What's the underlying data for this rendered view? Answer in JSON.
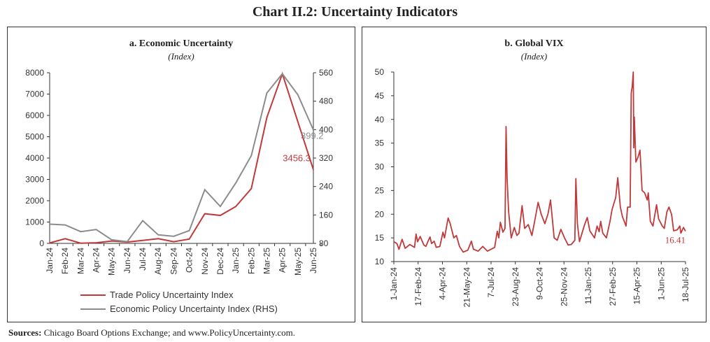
{
  "title": "Chart II.2: Uncertainty Indicators",
  "sources_label": "Sources:",
  "sources_text": "Chicago Board Options Exchange; and www.PolicyUncertainty.com.",
  "colors": {
    "red": "#c0393b",
    "grey": "#8c8c8c",
    "axis": "#333333"
  },
  "chart_data": [
    {
      "type": "line",
      "title": "a. Economic Uncertainty",
      "subtitle": "(Index)",
      "categories": [
        "Jan-24",
        "Feb-24",
        "Mar-24",
        "Apr-24",
        "May-24",
        "Jun-24",
        "Jul-24",
        "Aug-24",
        "Sep-24",
        "Oct-24",
        "Nov-24",
        "Dec-24",
        "Jan-25",
        "Feb-25",
        "Mar-25",
        "Apr-25",
        "May-25",
        "Jun-25"
      ],
      "ylim": [
        0,
        8000
      ],
      "yticks": [
        0,
        1000,
        2000,
        3000,
        4000,
        5000,
        6000,
        7000,
        8000
      ],
      "y2lim": [
        80,
        560
      ],
      "y2ticks": [
        80,
        160,
        240,
        320,
        400,
        480,
        560
      ],
      "legend_position": "bottom",
      "series": [
        {
          "name": "Trade Policy Uncertainty Index",
          "axis": "left",
          "color": "#c0393b",
          "values": [
            20,
            220,
            10,
            30,
            110,
            60,
            140,
            220,
            80,
            200,
            1390,
            1310,
            1730,
            2570,
            5900,
            7950,
            5700,
            3456.3
          ],
          "end_label": "3456.3"
        },
        {
          "name": "Economic Policy Uncertainty Index (RHS)",
          "axis": "right",
          "color": "#8c8c8c",
          "values": [
            134,
            132,
            113,
            119,
            90,
            85,
            144,
            104,
            100,
            116,
            231,
            184,
            250,
            327,
            503,
            557,
            498,
            399.2
          ],
          "end_label": "399.2"
        }
      ]
    },
    {
      "type": "line",
      "title": "b. Global VIX",
      "subtitle": "(Index)",
      "x_unit": "days since 1-Jan-24",
      "xlim": [
        0,
        564
      ],
      "xticks": [
        0,
        47,
        94,
        141,
        188,
        235,
        282,
        329,
        376,
        423,
        470,
        517,
        564
      ],
      "xtick_labels": [
        "1-Jan-24",
        "17-Feb-24",
        "4-Apr-24",
        "21-May-24",
        "7-Jul-24",
        "23-Aug-24",
        "9-Oct-24",
        "25-Nov-24",
        "11-Jan-25",
        "27-Feb-25",
        "15-Apr-25",
        "1-Jun-25",
        "18-Jul-25"
      ],
      "ylim": [
        10,
        50
      ],
      "yticks": [
        10,
        15,
        20,
        25,
        30,
        35,
        40,
        45,
        50
      ],
      "series": [
        {
          "name": "Global VIX",
          "color": "#c0393b",
          "end_label": "16.41",
          "x": [
            0,
            6,
            10,
            16,
            22,
            31,
            40,
            43,
            46,
            51,
            58,
            62,
            67,
            70,
            73,
            78,
            82,
            89,
            95,
            98,
            105,
            109,
            116,
            121,
            127,
            134,
            143,
            150,
            154,
            163,
            172,
            181,
            195,
            200,
            203,
            206,
            211,
            215,
            217,
            219,
            222,
            227,
            233,
            238,
            242,
            248,
            253,
            260,
            267,
            274,
            279,
            285,
            292,
            298,
            303,
            310,
            316,
            323,
            330,
            337,
            343,
            350,
            352,
            355,
            359,
            368,
            374,
            379,
            388,
            393,
            397,
            400,
            404,
            411,
            418,
            422,
            429,
            433,
            438,
            442,
            449,
            452,
            457,
            459,
            461,
            463,
            464,
            465,
            468,
            472,
            476,
            480,
            485,
            490,
            492,
            496,
            501,
            508,
            512,
            519,
            523,
            528,
            532,
            537,
            541,
            548,
            553,
            555,
            560,
            564
          ],
          "y": [
            14.2,
            13.8,
            12.6,
            14.7,
            12.8,
            13.6,
            13,
            15.8,
            14.2,
            15.3,
            13.5,
            13.2,
            14.5,
            15.2,
            13.8,
            14.3,
            13,
            13.2,
            16.2,
            15,
            19.2,
            18,
            15,
            15.5,
            13.2,
            12,
            12.4,
            14.3,
            12.6,
            12.2,
            13.2,
            12.2,
            13,
            16.4,
            15,
            18.3,
            16.2,
            17,
            38.5,
            27.5,
            20.5,
            15,
            17.2,
            15.5,
            16,
            21.8,
            17,
            17.8,
            15.5,
            19.5,
            22.5,
            20,
            18,
            20,
            23,
            15,
            14.5,
            16.8,
            15,
            13.5,
            13.6,
            14.5,
            27.5,
            18,
            14.2,
            17.5,
            19.3,
            16.5,
            15,
            17.5,
            16.3,
            18.5,
            16,
            15,
            18.5,
            21,
            23.5,
            27.7,
            21.5,
            19.5,
            17.5,
            21.5,
            21.5,
            45.5,
            47,
            50,
            34,
            40.5,
            31,
            32,
            33.5,
            25,
            24.5,
            23,
            24.5,
            18.5,
            17.5,
            22,
            19,
            17.5,
            17,
            20.5,
            21.5,
            20,
            16.5,
            16.7,
            17.5,
            16,
            17.2,
            16.41
          ]
        }
      ]
    }
  ]
}
